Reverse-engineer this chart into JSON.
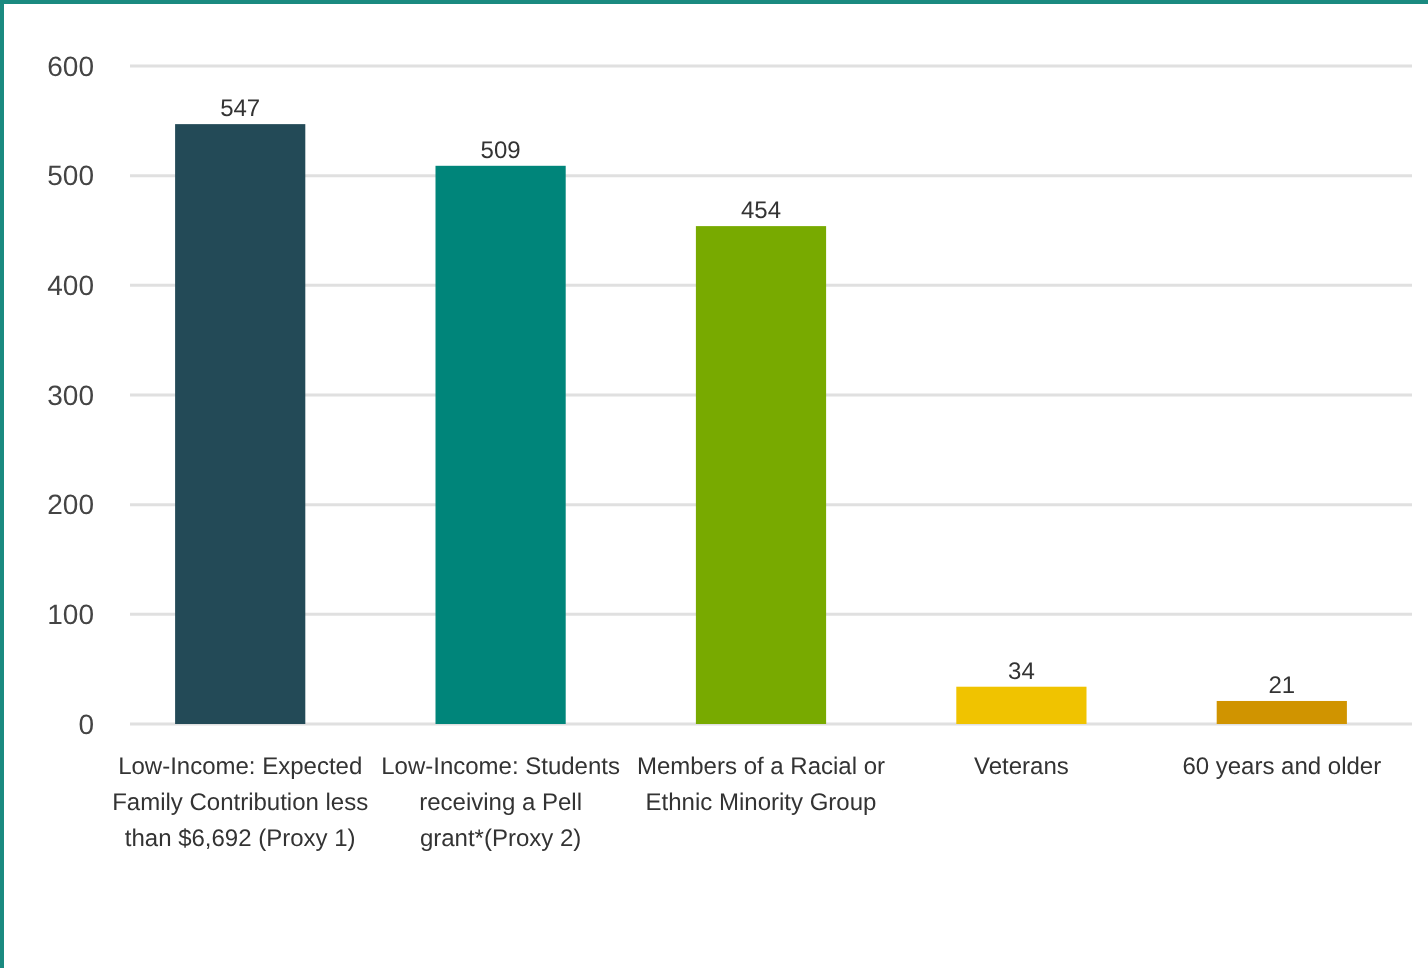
{
  "chart_data": {
    "type": "bar",
    "categories": [
      "Low-Income: Expected Family Contribution less than $6,692 (Proxy 1)",
      "Low-Income: Students receiving a Pell grant*(Proxy 2)",
      "Members of a Racial or Ethnic Minority Group",
      "Veterans",
      "60 years and older"
    ],
    "values": [
      547,
      509,
      454,
      34,
      21
    ],
    "colors": [
      "#234a57",
      "#00857a",
      "#78aa00",
      "#f0c300",
      "#d09400"
    ],
    "ylim": [
      0,
      600
    ],
    "yticks": [
      0,
      100,
      200,
      300,
      400,
      500,
      600
    ],
    "grid": "y",
    "data_labels": true
  }
}
